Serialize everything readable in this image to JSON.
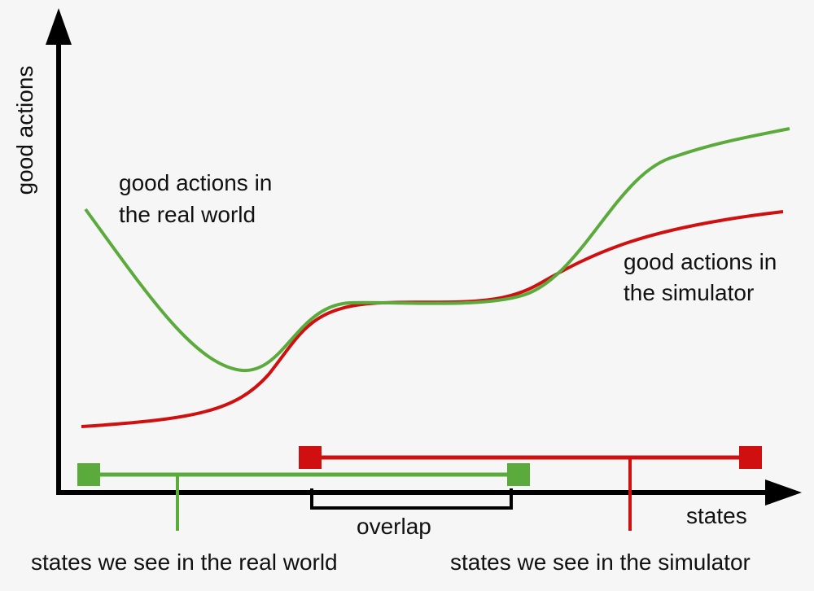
{
  "axes": {
    "y_label": "good actions",
    "x_label": "states"
  },
  "curves": {
    "real": {
      "label_line1": "good actions in",
      "label_line2": "the real world",
      "color": "#5aaa3c"
    },
    "sim": {
      "label_line1": "good actions in",
      "label_line2": "the simulator",
      "color": "#d01010"
    }
  },
  "ranges": {
    "real": {
      "label": "states we see in the real world",
      "color": "#5aaa3c"
    },
    "sim": {
      "label": "states we see in the simulator",
      "color": "#d01010"
    },
    "overlap": {
      "label": "overlap"
    }
  }
}
